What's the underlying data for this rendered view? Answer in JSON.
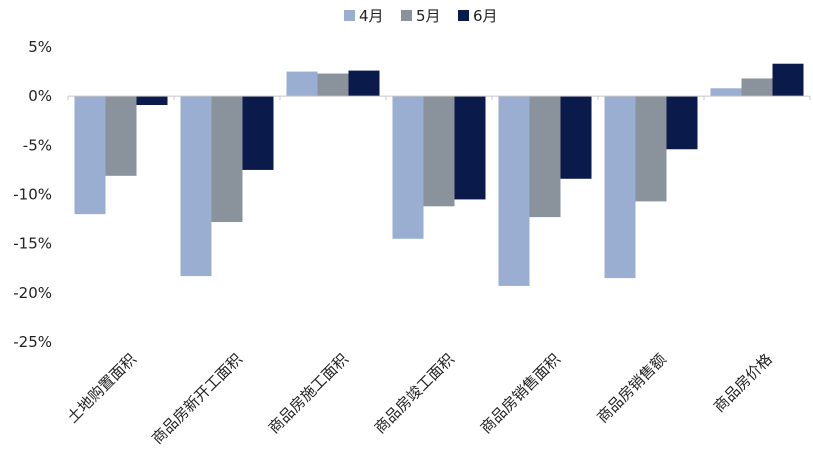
{
  "chart_data": {
    "type": "bar",
    "categories": [
      "土地购置面积",
      "商品房新开工面积",
      "商品房施工面积",
      "商品房竣工面积",
      "商品房销售面积",
      "商品房销售额",
      "商品房价格"
    ],
    "series": [
      {
        "name": "4月",
        "color": "#9aaed2",
        "values": [
          -12.0,
          -18.3,
          2.5,
          -14.5,
          -19.3,
          -18.5,
          0.8
        ]
      },
      {
        "name": "5月",
        "color": "#8a939c",
        "values": [
          -8.1,
          -12.8,
          2.3,
          -11.2,
          -12.3,
          -10.7,
          1.8
        ]
      },
      {
        "name": "6月",
        "color": "#0a1a4a",
        "values": [
          -0.9,
          -7.5,
          2.6,
          -10.5,
          -8.4,
          -5.4,
          3.3
        ]
      }
    ],
    "y_ticks": [
      "5%",
      "0%",
      "-5%",
      "-10%",
      "-15%",
      "-20%",
      "-25%"
    ],
    "y_tick_values": [
      5,
      0,
      -5,
      -10,
      -15,
      -20,
      -25
    ],
    "ylim": [
      -25,
      5
    ],
    "grid": false,
    "legend_position": "top-center",
    "title": "",
    "xlabel": "",
    "ylabel": ""
  }
}
